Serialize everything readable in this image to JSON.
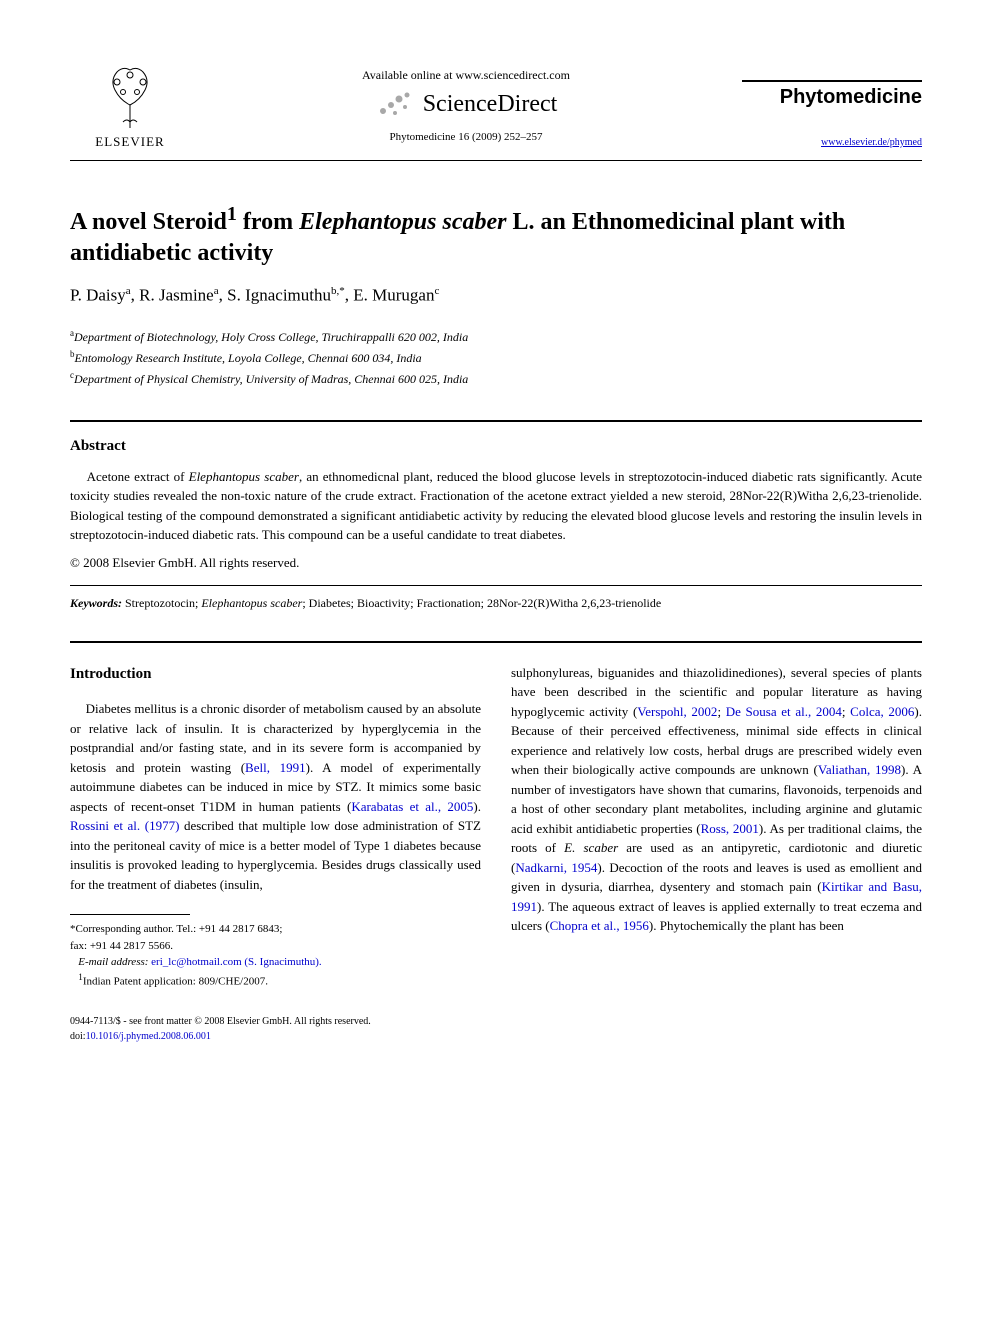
{
  "header": {
    "publisher_label": "ELSEVIER",
    "available_text": "Available online at www.sciencedirect.com",
    "sciencedirect_text": "ScienceDirect",
    "citation": "Phytomedicine 16 (2009) 252–257",
    "journal_name": "Phytomedicine",
    "journal_url": "www.elsevier.de/phymed"
  },
  "title": {
    "pre": "A novel Steroid",
    "sup": "1",
    "mid": " from ",
    "italic": "Elephantopus scaber",
    "post": " L. an Ethnomedicinal plant with antidiabetic activity"
  },
  "authors_html": "P. Daisy<sup>a</sup>, R. Jasmine<sup>a</sup>, S. Ignacimuthu<sup>b,*</sup>, E. Murugan<sup>c</sup>",
  "affiliations": [
    {
      "sup": "a",
      "text": "Department of Biotechnology, Holy Cross College, Tiruchirappalli 620 002, India"
    },
    {
      "sup": "b",
      "text": "Entomology Research Institute, Loyola College, Chennai 600 034, India"
    },
    {
      "sup": "c",
      "text": "Department of Physical Chemistry, University of Madras, Chennai 600 025, India"
    }
  ],
  "abstract": {
    "heading": "Abstract",
    "text_pre": "Acetone extract of ",
    "text_italic": "Elephantopus scaber",
    "text_post": ", an ethnomedicnal plant, reduced the blood glucose levels in streptozotocin-induced diabetic rats significantly. Acute toxicity studies revealed the non-toxic nature of the crude extract. Fractionation of the acetone extract yielded a new steroid, 28Nor-22(R)Witha 2,6,23-trienolide. Biological testing of the compound demonstrated a significant antidiabetic activity by reducing the elevated blood glucose levels and restoring the insulin levels in streptozotocin-induced diabetic rats. This compound can be a useful candidate to treat diabetes.",
    "copyright": "© 2008 Elsevier GmbH. All rights reserved."
  },
  "keywords": {
    "label": "Keywords:",
    "pre": " Streptozotocin; ",
    "italic": "Elephantopus scaber",
    "post": "; Diabetes; Bioactivity; Fractionation; 28Nor-22(R)Witha 2,6,23-trienolide"
  },
  "intro_heading": "Introduction",
  "col1": {
    "p1_pre": "Diabetes mellitus is a chronic disorder of metabolism caused by an absolute or relative lack of insulin. It is characterized by hyperglycemia in the postprandial and/or fasting state, and in its severe form is accompanied by ketosis and protein wasting (",
    "p1_ref1": "Bell, 1991",
    "p1_mid1": "). A model of experimentally autoimmune diabetes can be induced in mice by STZ. It mimics some basic aspects of recent-onset T1DM in human patients (",
    "p1_ref2": "Karabatas et al., 2005",
    "p1_mid2": "). ",
    "p1_ref3": "Rossini et al. (1977)",
    "p1_post": " described that multiple low dose administration of STZ into the peritoneal cavity of mice is a better model of Type 1 diabetes because insulitis is provoked leading to hyperglycemia. Besides drugs classically used for the treatment of diabetes (insulin,"
  },
  "col2": {
    "p1_pre": "sulphonylureas, biguanides and thiazolidinediones), several species of plants have been described in the scientific and popular literature as having hypoglycemic activity (",
    "p1_ref1": "Verspohl, 2002",
    "p1_sep1": "; ",
    "p1_ref2": "De Sousa et al., 2004",
    "p1_sep2": "; ",
    "p1_ref3": "Colca, 2006",
    "p1_mid1": "). Because of their perceived effectiveness, minimal side effects in clinical experience and relatively low costs, herbal drugs are prescribed widely even when their biologically active compounds are unknown (",
    "p1_ref4": "Valiathan, 1998",
    "p1_mid2": "). A number of investigators have shown that cumarins, flavonoids, terpenoids and a host of other secondary plant metabolites, including arginine and glutamic acid exhibit antidiabetic properties (",
    "p1_ref5": "Ross, 2001",
    "p1_mid3": "). As per traditional claims, the roots of ",
    "p1_italic1": "E. scaber",
    "p1_mid4": " are used as an antipyretic, cardiotonic and diuretic (",
    "p1_ref6": "Nadkarni, 1954",
    "p1_mid5": "). Decoction of the roots and leaves is used as emollient and given in dysuria, diarrhea, dysentery and stomach pain (",
    "p1_ref7": "Kirtikar and Basu, 1991",
    "p1_mid6": "). The aqueous extract of leaves is applied externally to treat eczema and ulcers (",
    "p1_ref8": "Chopra et al., 1956",
    "p1_post": "). Phytochemically the plant has been"
  },
  "footnotes": {
    "corr_label": "*Corresponding author. Tel.: +91 44 2817 6843;",
    "fax": "fax: +91 44 2817 5566.",
    "email_label": "E-mail address:",
    "email": " eri_lc@hotmail.com (S. Ignacimuthu).",
    "patent_sup": "1",
    "patent": "Indian Patent application: 809/CHE/2007."
  },
  "footer": {
    "line1": "0944-7113/$ - see front matter © 2008 Elsevier GmbH. All rights reserved.",
    "doi_label": "doi:",
    "doi": "10.1016/j.phymed.2008.06.001"
  },
  "colors": {
    "link": "#0000cc",
    "text": "#000000",
    "bg": "#ffffff",
    "sd_dot": "#a8a8a8"
  }
}
